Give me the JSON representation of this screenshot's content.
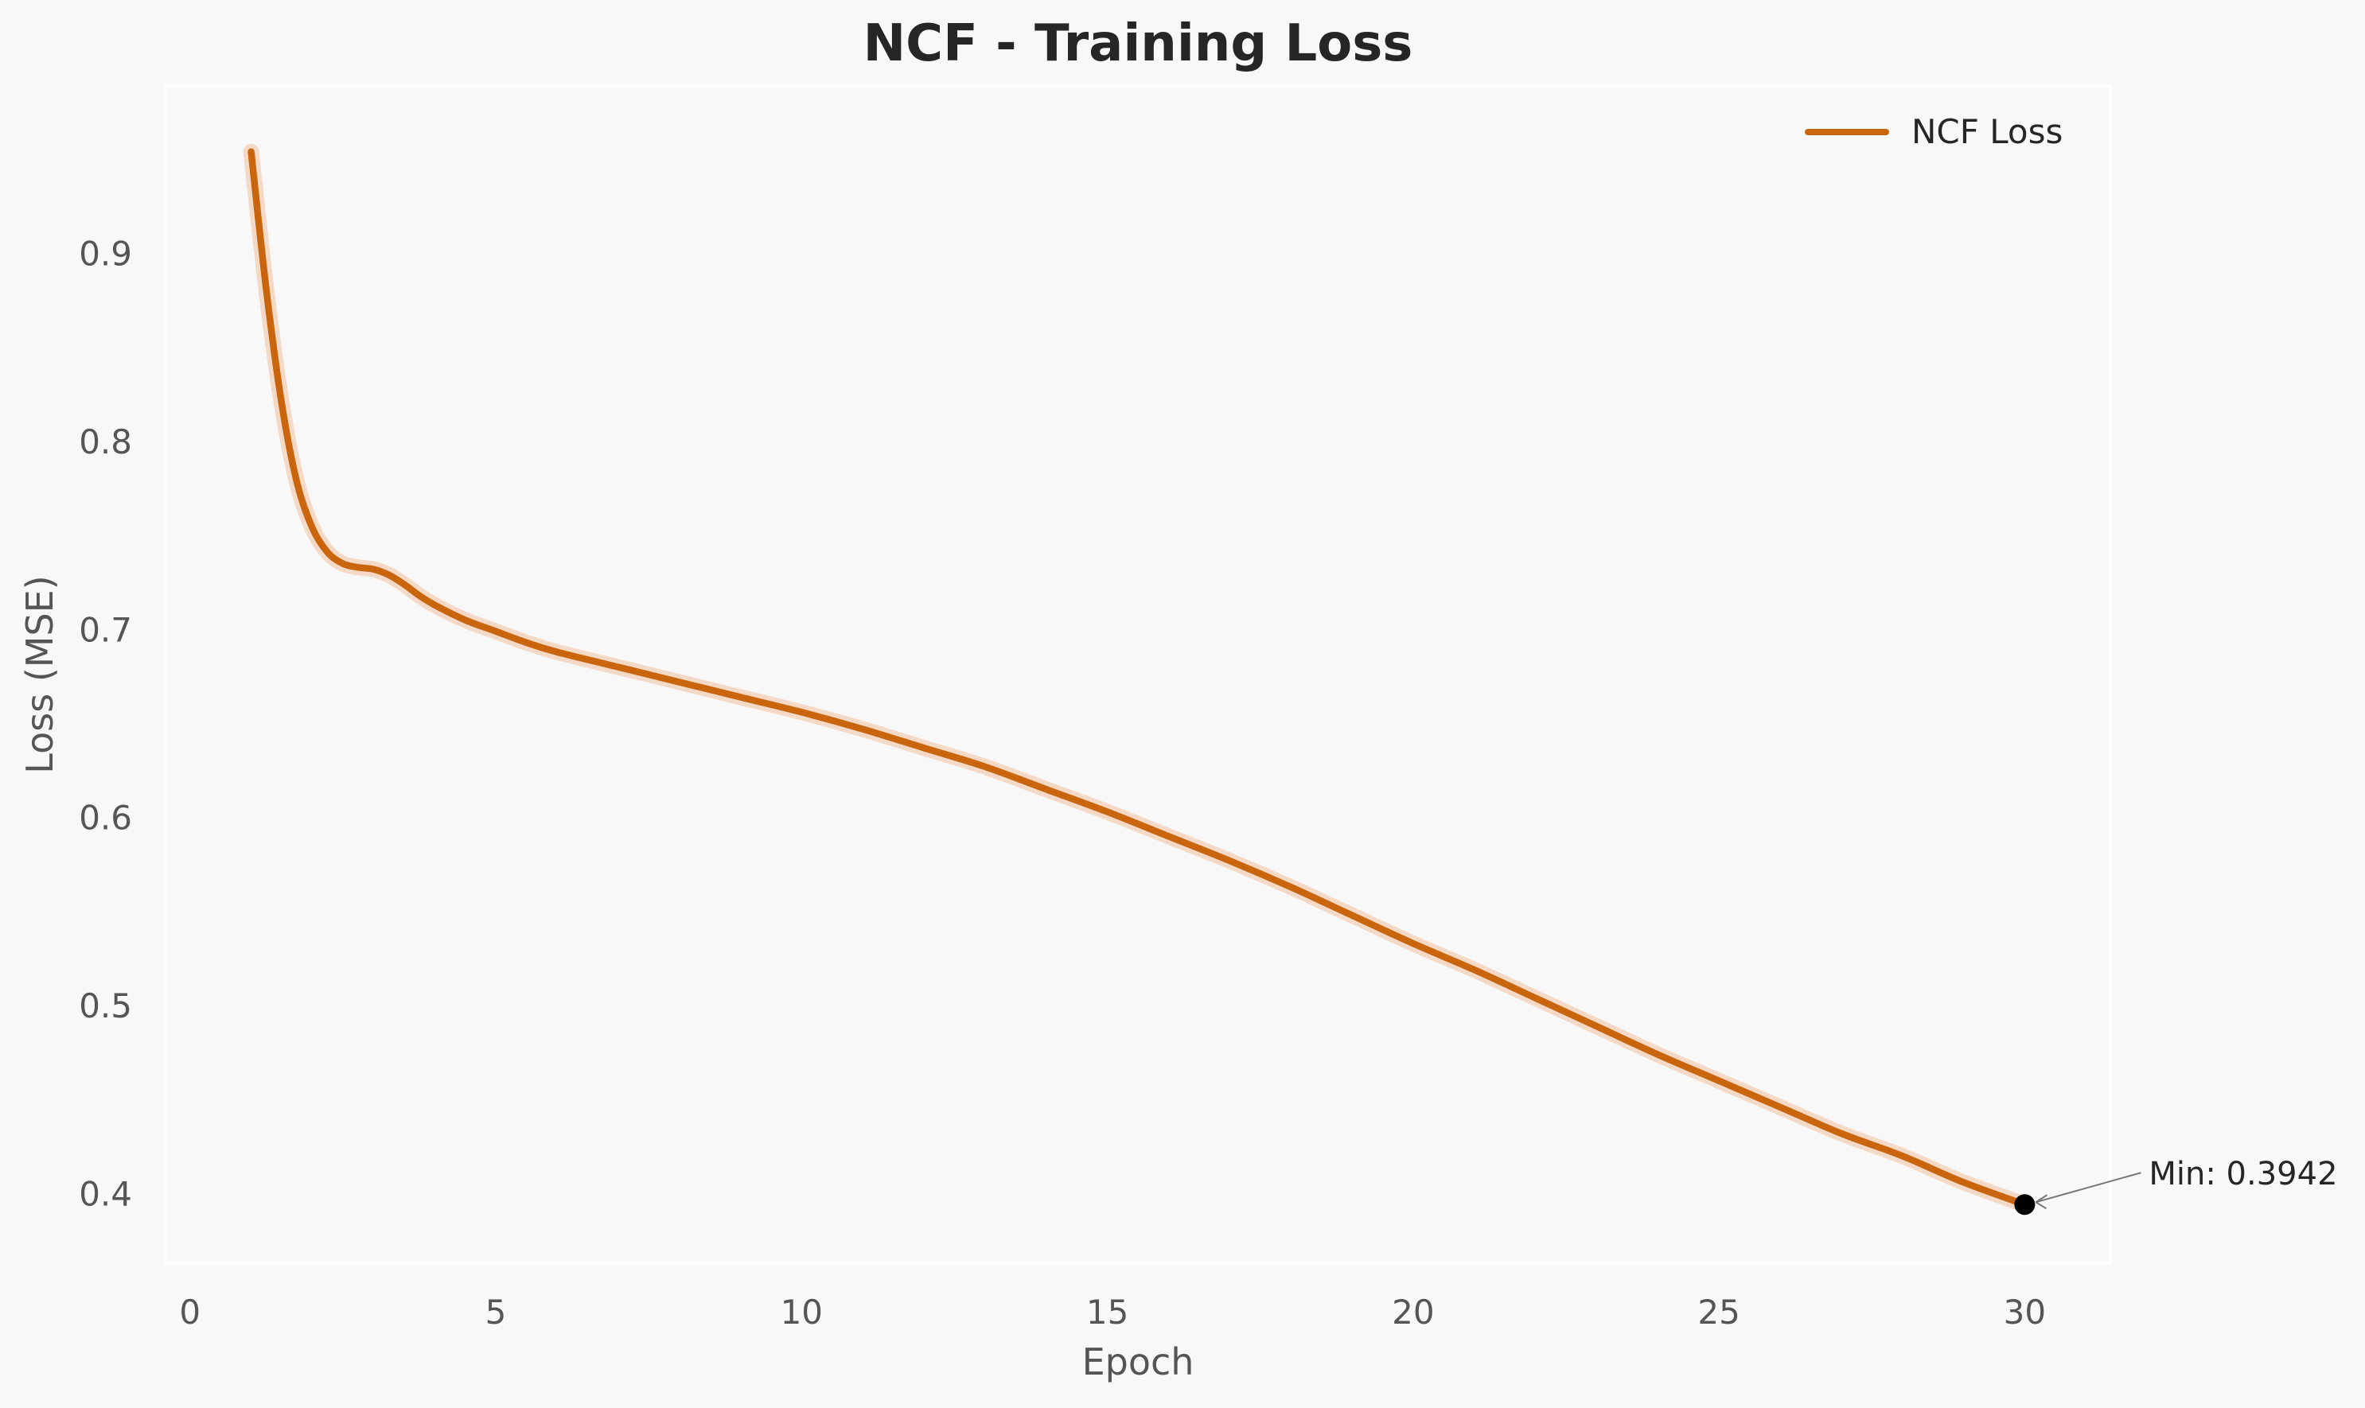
{
  "chart_data": {
    "type": "line",
    "title": "NCF - Training Loss",
    "xlabel": "Epoch",
    "ylabel": "Loss (MSE)",
    "xlim": [
      -0.4,
      31.4
    ],
    "ylim": [
      0.363,
      0.989
    ],
    "x_ticks": [
      0,
      5,
      10,
      15,
      20,
      25,
      30
    ],
    "y_ticks": [
      0.4,
      0.5,
      0.6,
      0.7,
      0.8,
      0.9
    ],
    "grid": false,
    "legend_position": "top-right",
    "series": [
      {
        "name": "NCF Loss",
        "color": "#c8650d",
        "band_color": "#f0b48a",
        "x": [
          1,
          1.25,
          1.5,
          1.75,
          2,
          2.25,
          2.5,
          2.75,
          3,
          3.25,
          3.5,
          3.75,
          4,
          4.5,
          5,
          5.5,
          6,
          7,
          8,
          9,
          10,
          11,
          12,
          13,
          14,
          15,
          16,
          17,
          18,
          19,
          20,
          21,
          22,
          23,
          24,
          25,
          26,
          27,
          28,
          29,
          30
        ],
        "y": [
          0.954,
          0.88,
          0.82,
          0.778,
          0.754,
          0.741,
          0.735,
          0.733,
          0.732,
          0.729,
          0.724,
          0.718,
          0.713,
          0.705,
          0.699,
          0.693,
          0.688,
          0.68,
          0.672,
          0.664,
          0.656,
          0.647,
          0.637,
          0.627,
          0.615,
          0.603,
          0.59,
          0.577,
          0.563,
          0.548,
          0.533,
          0.519,
          0.504,
          0.489,
          0.474,
          0.46,
          0.446,
          0.432,
          0.42,
          0.406,
          0.3942
        ]
      }
    ],
    "annotations": [
      {
        "text": "Min: 0.3942",
        "x": 30,
        "y": 0.3942,
        "marker_color": "#000000"
      }
    ]
  }
}
